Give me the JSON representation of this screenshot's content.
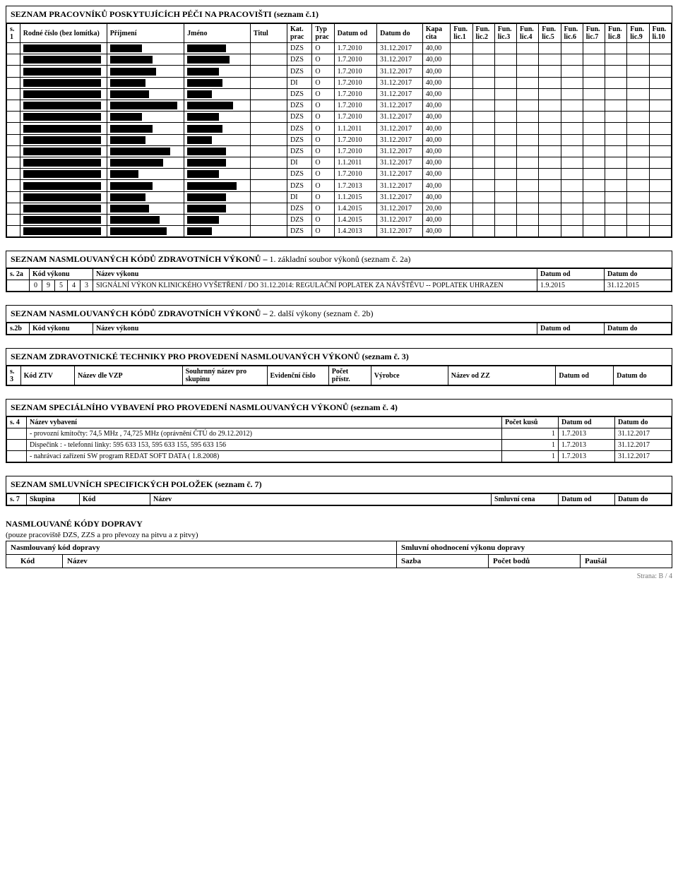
{
  "section1": {
    "title": "SEZNAM PRACOVNÍKŮ POSKYTUJÍCÍCH PÉČI NA PRACOVIŠTI (seznam č.1)",
    "headers": {
      "s1": "s. 1",
      "rodne": "Rodné číslo (bez lomítka)",
      "prijmeni": "Příjmení",
      "jmeno": "Jméno",
      "titul": "Titul",
      "katprac": "Kat. prac",
      "typprac": "Typ prac",
      "datumod": "Datum od",
      "datumdo": "Datum do",
      "kapacita": "Kapa cita",
      "lic1": "Fun. lic.1",
      "lic2": "Fun. lic.2",
      "lic3": "Fun. lic.3",
      "lic4": "Fun. lic.4",
      "lic5": "Fun. lic.5",
      "lic6": "Fun. lic.6",
      "lic7": "Fun. lic.7",
      "lic8": "Fun. lic.8",
      "lic9": "Fun. lic.9",
      "lic10": "Fun. li.10"
    },
    "rows": [
      {
        "rc_w": 110,
        "pr_w": 45,
        "jm_w": 55,
        "ti_w": 0,
        "kat": "DZS",
        "typ": "O",
        "od": "1.7.2010",
        "do": "31.12.2017",
        "kap": "40,00"
      },
      {
        "rc_w": 110,
        "pr_w": 60,
        "jm_w": 60,
        "ti_w": 0,
        "kat": "DZS",
        "typ": "O",
        "od": "1.7.2010",
        "do": "31.12.2017",
        "kap": "40,00"
      },
      {
        "rc_w": 110,
        "pr_w": 65,
        "jm_w": 45,
        "ti_w": 0,
        "kat": "DZS",
        "typ": "O",
        "od": "1.7.2010",
        "do": "31.12.2017",
        "kap": "40,00"
      },
      {
        "rc_w": 110,
        "pr_w": 50,
        "jm_w": 50,
        "ti_w": 0,
        "kat": "DI",
        "typ": "O",
        "od": "1.7.2010",
        "do": "31.12.2017",
        "kap": "40,00"
      },
      {
        "rc_w": 110,
        "pr_w": 55,
        "jm_w": 35,
        "ti_w": 0,
        "kat": "DZS",
        "typ": "O",
        "od": "1.7.2010",
        "do": "31.12.2017",
        "kap": "40,00"
      },
      {
        "rc_w": 110,
        "pr_w": 95,
        "jm_w": 65,
        "ti_w": 0,
        "kat": "DZS",
        "typ": "O",
        "od": "1.7.2010",
        "do": "31.12.2017",
        "kap": "40,00"
      },
      {
        "rc_w": 110,
        "pr_w": 45,
        "jm_w": 45,
        "ti_w": 0,
        "kat": "DZS",
        "typ": "O",
        "od": "1.7.2010",
        "do": "31.12.2017",
        "kap": "40,00"
      },
      {
        "rc_w": 110,
        "pr_w": 60,
        "jm_w": 50,
        "ti_w": 0,
        "kat": "DZS",
        "typ": "O",
        "od": "1.1.2011",
        "do": "31.12.2017",
        "kap": "40,00"
      },
      {
        "rc_w": 110,
        "pr_w": 50,
        "jm_w": 35,
        "ti_w": 0,
        "kat": "DZS",
        "typ": "O",
        "od": "1.7.2010",
        "do": "31.12.2017",
        "kap": "40,00"
      },
      {
        "rc_w": 110,
        "pr_w": 85,
        "jm_w": 55,
        "ti_w": 0,
        "kat": "DZS",
        "typ": "O",
        "od": "1.7.2010",
        "do": "31.12.2017",
        "kap": "40,00"
      },
      {
        "rc_w": 110,
        "pr_w": 75,
        "jm_w": 55,
        "ti_w": 0,
        "kat": "DI",
        "typ": "O",
        "od": "1.1.2011",
        "do": "31.12.2017",
        "kap": "40,00"
      },
      {
        "rc_w": 110,
        "pr_w": 40,
        "jm_w": 45,
        "ti_w": 0,
        "kat": "DZS",
        "typ": "O",
        "od": "1.7.2010",
        "do": "31.12.2017",
        "kap": "40,00"
      },
      {
        "rc_w": 110,
        "pr_w": 60,
        "jm_w": 70,
        "ti_w": 0,
        "kat": "DZS",
        "typ": "O",
        "od": "1.7.2013",
        "do": "31.12.2017",
        "kap": "40,00"
      },
      {
        "rc_w": 110,
        "pr_w": 50,
        "jm_w": 55,
        "ti_w": 0,
        "kat": "DI",
        "typ": "O",
        "od": "1.1.2015",
        "do": "31.12.2017",
        "kap": "40,00"
      },
      {
        "rc_w": 110,
        "pr_w": 55,
        "jm_w": 55,
        "ti_w": 0,
        "kat": "DZS",
        "typ": "O",
        "od": "1.4.2015",
        "do": "31.12.2017",
        "kap": "20,00"
      },
      {
        "rc_w": 110,
        "pr_w": 70,
        "jm_w": 45,
        "ti_w": 0,
        "kat": "DZS",
        "typ": "O",
        "od": "1.4.2015",
        "do": "31.12.2017",
        "kap": "40,00"
      },
      {
        "rc_w": 110,
        "pr_w": 80,
        "jm_w": 35,
        "ti_w": 0,
        "kat": "DZS",
        "typ": "O",
        "od": "1.4.2013",
        "do": "31.12.2017",
        "kap": "40,00"
      }
    ]
  },
  "section2a": {
    "title": "SEZNAM NASMLOUVANÝCH KÓDŮ ZDRAVOTNÍCH VÝKONŮ – 1. základní soubor výkonů (seznam č. 2a)",
    "h_s": "s. 2a",
    "h_kod": "Kód výkonu",
    "h_nazev": "Název výkonu",
    "h_od": "Datum od",
    "h_do": "Datum do",
    "row": {
      "kod": [
        "0",
        "9",
        "5",
        "4",
        "3"
      ],
      "nazev": "SIGNÁLNÍ VÝKON KLINICKÉHO VYŠETŘENÍ / DO 31.12.2014: REGULAČNÍ POPLATEK ZA NÁVŠTĚVU -- POPLATEK UHRAZEN",
      "od": "1.9.2015",
      "do": "31.12.2015"
    }
  },
  "section2b": {
    "title": "SEZNAM NASMLOUVANÝCH KÓDŮ ZDRAVOTNÍCH VÝKONŮ – 2. další výkony (seznam č. 2b)",
    "h_s": "s.2b",
    "h_kod": "Kód výkonu",
    "h_nazev": "Název výkonu",
    "h_od": "Datum od",
    "h_do": "Datum do"
  },
  "section3": {
    "title": "SEZNAM ZDRAVOTNICKÉ TECHNIKY PRO PROVEDENÍ NASMLOUVANÝCH VÝKONŮ (seznam č. 3)",
    "h_s": "s. 3",
    "h_kodztv": "Kód ZTV",
    "h_nazevvzp": "Název dle VZP",
    "h_souhrn": "Souhrnný název pro skupinu",
    "h_evid": "Evidenční číslo",
    "h_pocet": "Počet přístr.",
    "h_vyrobce": "Výrobce",
    "h_nazevzz": "Název od ZZ",
    "h_od": "Datum od",
    "h_do": "Datum do"
  },
  "section4": {
    "title": "SEZNAM SPECIÁLNÍHO VYBAVENÍ PRO PROVEDENÍ NASMLOUVANÝCH VÝKONŮ (seznam č. 4)",
    "h_s": "s. 4",
    "h_nazev": "Název vybavení",
    "h_pocet": "Počet kusů",
    "h_od": "Datum od",
    "h_do": "Datum do",
    "rows": [
      {
        "nazev": "- provozní kmitočty: 74,5 MHz ,   74,725 MHz (oprávnění  ČTÚ do 29.12.2012)",
        "pocet": "1",
        "od": "1.7.2013",
        "do": "31.12.2017"
      },
      {
        "nazev": "Dispečink : - telefonní linky: 595 633 153, 595 633 155, 595 633 156",
        "pocet": "1",
        "od": "1.7.2013",
        "do": "31.12.2017"
      },
      {
        "nazev": "- nahrávací zařízení SW program REDAT SOFT DATA ( 1.8.2008)",
        "pocet": "1",
        "od": "1.7.2013",
        "do": "31.12.2017"
      }
    ]
  },
  "section7": {
    "title": "SEZNAM SMLUVNÍCH SPECIFICKÝCH POLOŽEK (seznam č. 7)",
    "h_s": "s. 7",
    "h_skupina": "Skupina",
    "h_kod": "Kód",
    "h_nazev": "Název",
    "h_cena": "Smluvní cena",
    "h_od": "Datum od",
    "h_do": "Datum do"
  },
  "doprava": {
    "heading": "NASMLOUVANÉ KÓDY DOPRAVY",
    "sub": "(pouze pracoviště DZS, ZZS a pro převozy na pitvu a z pitvy)",
    "h_kodlbl": "Nasmlouvaný kód dopravy",
    "h_ohodlbl": "Smluvní ohodnocení výkonu dopravy",
    "h_kod": "Kód",
    "h_nazev": "Název",
    "h_sazba": "Sazba",
    "h_body": "Počet bodů",
    "h_pausal": "Paušál"
  },
  "pagenum": "Strana: B / 4"
}
